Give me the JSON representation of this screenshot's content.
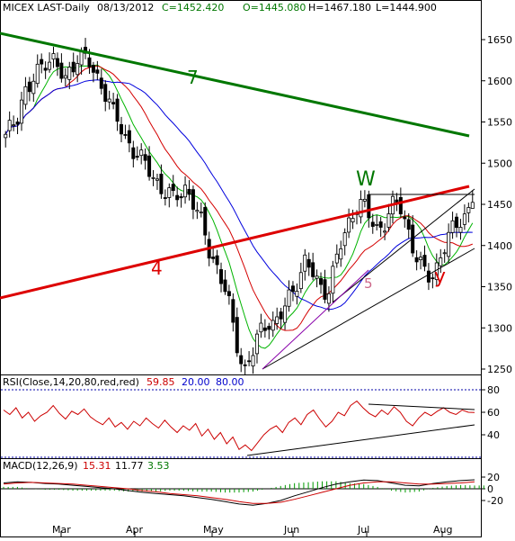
{
  "header": {
    "symbol": "MICEX LAST-Daily",
    "date": "08/13/2012",
    "close": "C=1452.420",
    "open": "O=1445.080",
    "high": "H=1467.180",
    "low": "L=1444.900"
  },
  "colors": {
    "candle_up": "#ffffff",
    "candle_down": "#000000",
    "ma_short": "#00b400",
    "ma_mid": "#d40000",
    "ma_long": "#0000dd",
    "trend_red": "#dd0000",
    "trend_green": "#007700",
    "rsi_line": "#cc0000",
    "macd_line": "#000000",
    "signal_line": "#cc0000",
    "histogram": "#009900",
    "header_symbol": "#000000",
    "header_values": "#007700",
    "label_blue": "#0000cc"
  },
  "annotations": {
    "label_7": "7",
    "label_4": "4",
    "label_5": "5",
    "label_W": "W",
    "label_y": "y"
  },
  "rsi_panel": {
    "title": "RSI(Close,14,20,80,red,red)",
    "current": "59.85",
    "lower": "20.00",
    "upper": "80.00"
  },
  "macd_panel": {
    "title": "MACD(12,26,9)",
    "macd": "15.31",
    "signal": "11.77",
    "hist": "3.53"
  },
  "chart_data": [
    {
      "type": "candlestick",
      "title": "MICEX LAST-Daily",
      "x_ticks": [
        "Mar",
        "Apr",
        "May",
        "Jun",
        "Jul",
        "Aug"
      ],
      "y_ticks": [
        1650,
        1600,
        1550,
        1500,
        1450,
        1400,
        1350,
        1300,
        1250
      ],
      "ylim": [
        1240,
        1680
      ],
      "grid": false,
      "ohlc_anchor_closes": [
        1530,
        1545,
        1560,
        1585,
        1590,
        1605,
        1618,
        1630,
        1625,
        1610,
        1600,
        1615,
        1632,
        1628,
        1620,
        1605,
        1595,
        1585,
        1560,
        1545,
        1530,
        1520,
        1512,
        1500,
        1490,
        1480,
        1470,
        1465,
        1455,
        1462,
        1470,
        1460,
        1440,
        1420,
        1395,
        1380,
        1360,
        1340,
        1300,
        1270,
        1250,
        1265,
        1285,
        1300,
        1310,
        1305,
        1315,
        1330,
        1345,
        1365,
        1380,
        1370,
        1355,
        1345,
        1350,
        1375,
        1400,
        1420,
        1440,
        1455,
        1445,
        1430,
        1420,
        1425,
        1440,
        1450,
        1445,
        1425,
        1400,
        1380,
        1365,
        1360,
        1375,
        1395,
        1410,
        1420,
        1432,
        1440,
        1452
      ],
      "last": {
        "open": 1445.08,
        "high": 1467.18,
        "low": 1444.9,
        "close": 1452.42
      }
    },
    {
      "type": "line",
      "title": "RSI(Close,14,20,80,red,red)",
      "y_ticks": [
        80,
        60,
        40
      ],
      "ylim": [
        20,
        85
      ],
      "levels": [
        20,
        80
      ],
      "series": [
        {
          "name": "RSI",
          "values": [
            62,
            58,
            64,
            55,
            60,
            52,
            57,
            60,
            66,
            59,
            54,
            61,
            58,
            63,
            56,
            52,
            49,
            55,
            47,
            51,
            45,
            52,
            48,
            55,
            50,
            46,
            53,
            47,
            42,
            48,
            44,
            50,
            39,
            45,
            36,
            42,
            32,
            38,
            27,
            31,
            26,
            33,
            40,
            45,
            48,
            42,
            51,
            55,
            49,
            58,
            62,
            54,
            47,
            52,
            60,
            57,
            66,
            70,
            64,
            59,
            56,
            62,
            58,
            65,
            60,
            52,
            48,
            55,
            60,
            57,
            61,
            64,
            60,
            58,
            62,
            60,
            59.85
          ]
        }
      ]
    },
    {
      "type": "line",
      "title": "MACD(12,26,9)",
      "y_ticks": [
        20,
        0,
        -20
      ],
      "ylim": [
        -30,
        30
      ],
      "series": [
        {
          "name": "MACD",
          "values": [
            10,
            12,
            11,
            9,
            8,
            6,
            4,
            2,
            0,
            -3,
            -6,
            -8,
            -10,
            -12,
            -15,
            -18,
            -22,
            -26,
            -28,
            -25,
            -20,
            -12,
            -5,
            2,
            8,
            12,
            15,
            14,
            10,
            6,
            5,
            9,
            12,
            14,
            15.31
          ]
        },
        {
          "name": "Signal",
          "values": [
            8,
            10,
            11,
            10,
            9,
            8,
            6,
            4,
            2,
            0,
            -3,
            -5,
            -8,
            -10,
            -12,
            -15,
            -18,
            -22,
            -25,
            -25,
            -23,
            -18,
            -12,
            -6,
            0,
            6,
            10,
            12,
            12,
            10,
            8,
            8,
            9,
            10,
            11.77
          ]
        }
      ]
    }
  ]
}
